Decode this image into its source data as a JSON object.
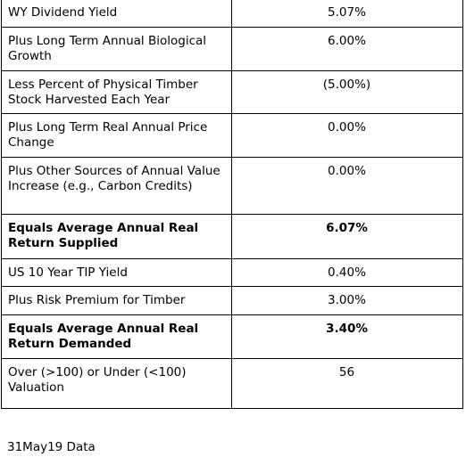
{
  "table": {
    "rows": [
      {
        "label": "WY Dividend Yield",
        "value": "5.07%",
        "bold": false
      },
      {
        "label": "Plus Long Term Annual Biological Growth",
        "value": "6.00%",
        "bold": false
      },
      {
        "label": "Less Percent of Physical Timber Stock Harvested Each Year",
        "value": "(5.00%)",
        "bold": false
      },
      {
        "label": "Plus Long Term Real Annual Price Change",
        "value": "0.00%",
        "bold": false
      },
      {
        "label": "Plus Other Sources of Annual Value Increase (e.g., Carbon Credits)",
        "value": "0.00%",
        "bold": false
      },
      {
        "label": "Equals Average Annual Real Return Supplied",
        "value": "6.07%",
        "bold": true
      },
      {
        "label": "US 10 Year TIP Yield",
        "value": "0.40%",
        "bold": false
      },
      {
        "label": "Plus Risk Premium for Timber",
        "value": "3.00%",
        "bold": false
      },
      {
        "label": "Equals Average Annual Real Return Demanded",
        "value": "3.40%",
        "bold": true
      },
      {
        "label": "Over (>100) or Under (<100) Valuation",
        "value": "56",
        "bold": false
      }
    ]
  },
  "footer": "31May19 Data"
}
